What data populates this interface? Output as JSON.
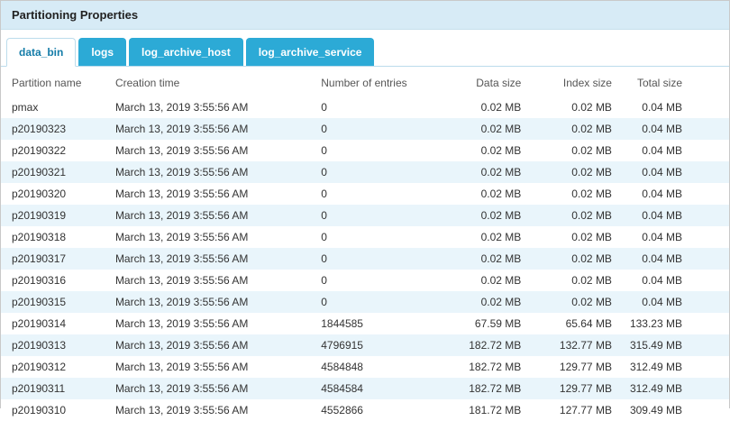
{
  "header": {
    "title": "Partitioning Properties"
  },
  "colors": {
    "titlebar_bg": "#d7ebf6",
    "tab_bg": "#2caad6",
    "tab_active_text": "#147ca8",
    "row_stripe": "#e9f5fb"
  },
  "tabs": [
    {
      "label": "data_bin",
      "active": true
    },
    {
      "label": "logs",
      "active": false
    },
    {
      "label": "log_archive_host",
      "active": false
    },
    {
      "label": "log_archive_service",
      "active": false
    }
  ],
  "table": {
    "columns": [
      {
        "label": "Partition name",
        "align": "left"
      },
      {
        "label": "Creation time",
        "align": "left"
      },
      {
        "label": "Number of entries",
        "align": "left"
      },
      {
        "label": "Data size",
        "align": "right"
      },
      {
        "label": "Index size",
        "align": "right"
      },
      {
        "label": "Total size",
        "align": "right"
      }
    ],
    "rows": [
      [
        "pmax",
        "March 13, 2019 3:55:56 AM",
        "0",
        "0.02 MB",
        "0.02 MB",
        "0.04 MB"
      ],
      [
        "p20190323",
        "March 13, 2019 3:55:56 AM",
        "0",
        "0.02 MB",
        "0.02 MB",
        "0.04 MB"
      ],
      [
        "p20190322",
        "March 13, 2019 3:55:56 AM",
        "0",
        "0.02 MB",
        "0.02 MB",
        "0.04 MB"
      ],
      [
        "p20190321",
        "March 13, 2019 3:55:56 AM",
        "0",
        "0.02 MB",
        "0.02 MB",
        "0.04 MB"
      ],
      [
        "p20190320",
        "March 13, 2019 3:55:56 AM",
        "0",
        "0.02 MB",
        "0.02 MB",
        "0.04 MB"
      ],
      [
        "p20190319",
        "March 13, 2019 3:55:56 AM",
        "0",
        "0.02 MB",
        "0.02 MB",
        "0.04 MB"
      ],
      [
        "p20190318",
        "March 13, 2019 3:55:56 AM",
        "0",
        "0.02 MB",
        "0.02 MB",
        "0.04 MB"
      ],
      [
        "p20190317",
        "March 13, 2019 3:55:56 AM",
        "0",
        "0.02 MB",
        "0.02 MB",
        "0.04 MB"
      ],
      [
        "p20190316",
        "March 13, 2019 3:55:56 AM",
        "0",
        "0.02 MB",
        "0.02 MB",
        "0.04 MB"
      ],
      [
        "p20190315",
        "March 13, 2019 3:55:56 AM",
        "0",
        "0.02 MB",
        "0.02 MB",
        "0.04 MB"
      ],
      [
        "p20190314",
        "March 13, 2019 3:55:56 AM",
        "1844585",
        "67.59 MB",
        "65.64 MB",
        "133.23 MB"
      ],
      [
        "p20190313",
        "March 13, 2019 3:55:56 AM",
        "4796915",
        "182.72 MB",
        "132.77 MB",
        "315.49 MB"
      ],
      [
        "p20190312",
        "March 13, 2019 3:55:56 AM",
        "4584848",
        "182.72 MB",
        "129.77 MB",
        "312.49 MB"
      ],
      [
        "p20190311",
        "March 13, 2019 3:55:56 AM",
        "4584584",
        "182.72 MB",
        "129.77 MB",
        "312.49 MB"
      ],
      [
        "p20190310",
        "March 13, 2019 3:55:56 AM",
        "4552866",
        "181.72 MB",
        "127.77 MB",
        "309.49 MB"
      ]
    ]
  }
}
